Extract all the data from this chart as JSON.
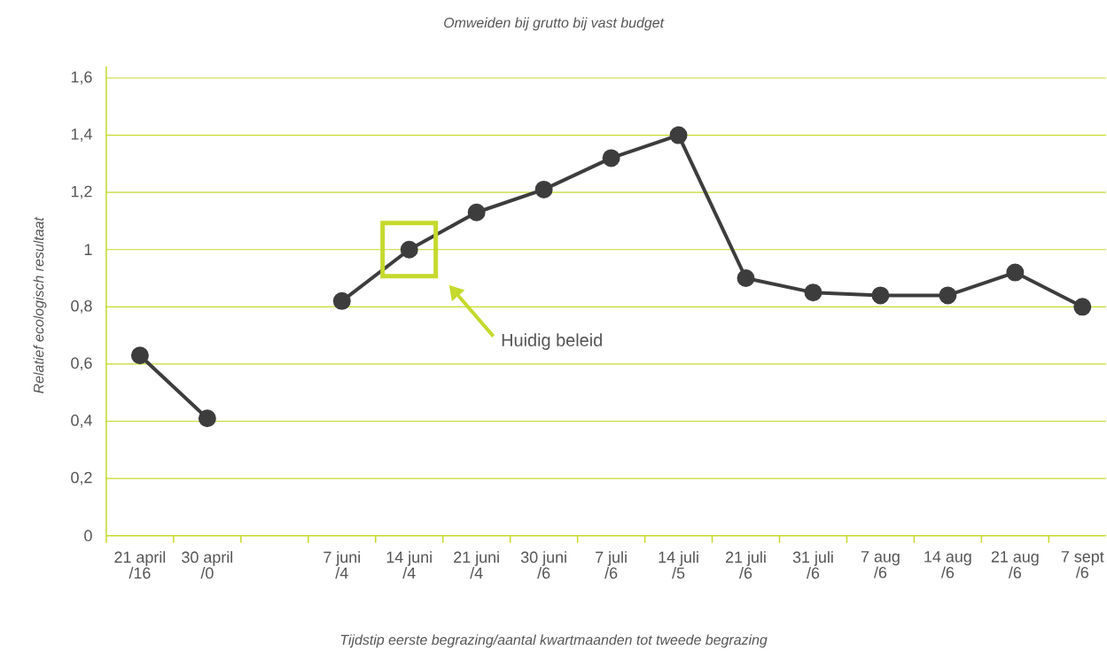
{
  "chart_data": {
    "type": "line",
    "title": "Omweiden bij grutto bij vast budget",
    "xlabel": "Tijdstip eerste begrazing/aantal kwartmaanden tot tweede begrazing",
    "ylabel": "Relatief ecologisch resultaat",
    "categories": [
      "21 april /16",
      "30 april /0",
      null,
      "7 juni /4",
      "14 juni /4",
      "21 juni /4",
      "30 juni /6",
      "7 juli /6",
      "14 juli /5",
      "21 juli /6",
      "31 juli /6",
      "7 aug /6",
      "14 aug /6",
      "21 aug /6",
      "7 sept /6"
    ],
    "series": [
      {
        "color": "#3d3d3d",
        "values": [
          0.63,
          0.41,
          null,
          0.82,
          1.0,
          1.13,
          1.21,
          1.32,
          1.4,
          0.9,
          0.85,
          0.84,
          0.84,
          0.92,
          0.8
        ]
      }
    ],
    "ylim": [
      0,
      1.64
    ],
    "yticks": [
      0,
      {
        "value": 0.2,
        "label": "0,2"
      },
      {
        "value": 0.4,
        "label": "0,4"
      },
      {
        "value": 0.6,
        "label": "0,6"
      },
      {
        "value": 0.8,
        "label": "0,8"
      },
      1,
      {
        "value": 1.2,
        "label": "1,2"
      },
      {
        "value": 1.4,
        "label": "1,4"
      },
      {
        "value": 1.6,
        "label": "1,6"
      }
    ],
    "grid": "y",
    "marker": "circle",
    "line_style": "solid",
    "annotations": [
      "Huidig beleid"
    ]
  }
}
